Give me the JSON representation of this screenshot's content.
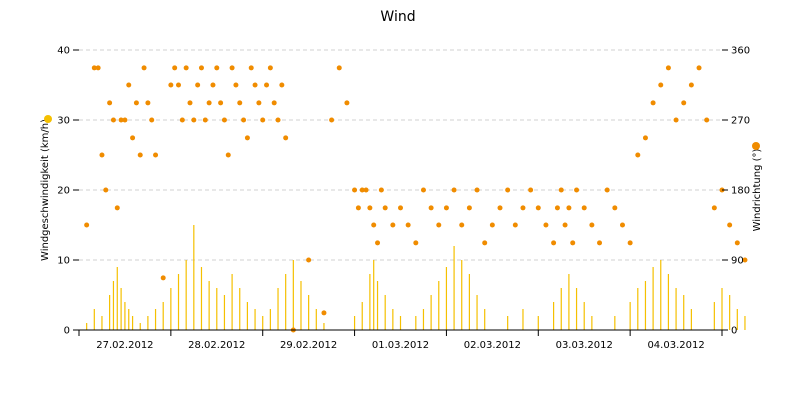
{
  "chart_data": {
    "type": "bar+scatter",
    "title": "Wind",
    "colors": {
      "speed": "#f5c000",
      "direction": "#f08c00",
      "grid": "#d0d0d0",
      "axis": "#000000"
    },
    "x_axis": {
      "type": "date",
      "range": [
        "2012-02-27T00:00",
        "2012-03-05T00:00"
      ],
      "tick_labels": [
        "27.02.2012",
        "28.02.2012",
        "29.02.2012",
        "01.03.2012",
        "02.03.2012",
        "03.03.2012",
        "04.03.2012"
      ]
    },
    "y_axis_left": {
      "label": "Windgeschwindigkeit (km/h)",
      "range": [
        0,
        40
      ],
      "ticks": [
        "0",
        "10",
        "20",
        "30",
        "40"
      ]
    },
    "y_axis_right": {
      "label": "Windrichtung (°)",
      "range": [
        0,
        360
      ],
      "ticks": [
        "0",
        "90",
        "180",
        "270",
        "360"
      ]
    },
    "grid": true,
    "series": [
      {
        "type": "bar",
        "values_note": "[hour offset from 27.02.2012 00:00, km/h]",
        "points": [
          [
            2,
            1
          ],
          [
            4,
            3
          ],
          [
            6,
            2
          ],
          [
            8,
            5
          ],
          [
            9,
            7
          ],
          [
            10,
            9
          ],
          [
            11,
            6
          ],
          [
            12,
            4
          ],
          [
            13,
            3
          ],
          [
            14,
            2
          ],
          [
            16,
            1
          ],
          [
            18,
            2
          ],
          [
            20,
            3
          ],
          [
            22,
            4
          ],
          [
            24,
            6
          ],
          [
            26,
            8
          ],
          [
            28,
            10
          ],
          [
            30,
            15
          ],
          [
            32,
            9
          ],
          [
            34,
            7
          ],
          [
            36,
            6
          ],
          [
            38,
            5
          ],
          [
            40,
            8
          ],
          [
            42,
            6
          ],
          [
            44,
            4
          ],
          [
            46,
            3
          ],
          [
            48,
            2
          ],
          [
            50,
            3
          ],
          [
            52,
            6
          ],
          [
            54,
            8
          ],
          [
            56,
            10
          ],
          [
            58,
            7
          ],
          [
            60,
            5
          ],
          [
            62,
            3
          ],
          [
            64,
            1
          ],
          [
            72,
            2
          ],
          [
            74,
            4
          ],
          [
            76,
            8
          ],
          [
            77,
            10
          ],
          [
            78,
            7
          ],
          [
            80,
            5
          ],
          [
            82,
            3
          ],
          [
            84,
            2
          ],
          [
            88,
            2
          ],
          [
            90,
            3
          ],
          [
            92,
            5
          ],
          [
            94,
            7
          ],
          [
            96,
            9
          ],
          [
            98,
            12
          ],
          [
            100,
            10
          ],
          [
            102,
            8
          ],
          [
            104,
            5
          ],
          [
            106,
            3
          ],
          [
            112,
            2
          ],
          [
            116,
            3
          ],
          [
            120,
            2
          ],
          [
            124,
            4
          ],
          [
            126,
            6
          ],
          [
            128,
            8
          ],
          [
            130,
            6
          ],
          [
            132,
            4
          ],
          [
            134,
            2
          ],
          [
            140,
            2
          ],
          [
            144,
            4
          ],
          [
            146,
            6
          ],
          [
            148,
            7
          ],
          [
            150,
            9
          ],
          [
            152,
            10
          ],
          [
            154,
            8
          ],
          [
            156,
            6
          ],
          [
            158,
            5
          ],
          [
            160,
            3
          ],
          [
            166,
            4
          ],
          [
            168,
            6
          ],
          [
            170,
            5
          ],
          [
            172,
            3
          ],
          [
            174,
            2
          ]
        ]
      },
      {
        "type": "scatter",
        "values_note": "[hour offset from 27.02.2012 00:00, degrees]",
        "points": [
          [
            2,
            135
          ],
          [
            4,
            337
          ],
          [
            5,
            337
          ],
          [
            6,
            225
          ],
          [
            7,
            180
          ],
          [
            8,
            292
          ],
          [
            9,
            270
          ],
          [
            10,
            157
          ],
          [
            11,
            270
          ],
          [
            12,
            270
          ],
          [
            13,
            315
          ],
          [
            14,
            247
          ],
          [
            15,
            292
          ],
          [
            16,
            225
          ],
          [
            17,
            337
          ],
          [
            18,
            292
          ],
          [
            19,
            270
          ],
          [
            20,
            225
          ],
          [
            22,
            67
          ],
          [
            24,
            315
          ],
          [
            25,
            337
          ],
          [
            26,
            315
          ],
          [
            27,
            270
          ],
          [
            28,
            337
          ],
          [
            29,
            292
          ],
          [
            30,
            270
          ],
          [
            31,
            315
          ],
          [
            32,
            337
          ],
          [
            33,
            270
          ],
          [
            34,
            292
          ],
          [
            35,
            315
          ],
          [
            36,
            337
          ],
          [
            37,
            292
          ],
          [
            38,
            270
          ],
          [
            39,
            225
          ],
          [
            40,
            337
          ],
          [
            41,
            315
          ],
          [
            42,
            292
          ],
          [
            43,
            270
          ],
          [
            44,
            247
          ],
          [
            45,
            337
          ],
          [
            46,
            315
          ],
          [
            47,
            292
          ],
          [
            48,
            270
          ],
          [
            49,
            315
          ],
          [
            50,
            337
          ],
          [
            51,
            292
          ],
          [
            52,
            270
          ],
          [
            53,
            315
          ],
          [
            54,
            247
          ],
          [
            56,
            0
          ],
          [
            60,
            90
          ],
          [
            64,
            22
          ],
          [
            66,
            270
          ],
          [
            68,
            337
          ],
          [
            70,
            292
          ],
          [
            72,
            180
          ],
          [
            73,
            157
          ],
          [
            74,
            180
          ],
          [
            75,
            180
          ],
          [
            76,
            157
          ],
          [
            77,
            135
          ],
          [
            78,
            112
          ],
          [
            79,
            180
          ],
          [
            80,
            157
          ],
          [
            82,
            135
          ],
          [
            84,
            157
          ],
          [
            86,
            135
          ],
          [
            88,
            112
          ],
          [
            90,
            180
          ],
          [
            92,
            157
          ],
          [
            94,
            135
          ],
          [
            96,
            157
          ],
          [
            98,
            180
          ],
          [
            100,
            135
          ],
          [
            102,
            157
          ],
          [
            104,
            180
          ],
          [
            106,
            112
          ],
          [
            108,
            135
          ],
          [
            110,
            157
          ],
          [
            112,
            180
          ],
          [
            114,
            135
          ],
          [
            116,
            157
          ],
          [
            118,
            180
          ],
          [
            120,
            157
          ],
          [
            122,
            135
          ],
          [
            124,
            112
          ],
          [
            125,
            157
          ],
          [
            126,
            180
          ],
          [
            127,
            135
          ],
          [
            128,
            157
          ],
          [
            129,
            112
          ],
          [
            130,
            180
          ],
          [
            132,
            157
          ],
          [
            134,
            135
          ],
          [
            136,
            112
          ],
          [
            138,
            180
          ],
          [
            140,
            157
          ],
          [
            142,
            135
          ],
          [
            144,
            112
          ],
          [
            146,
            225
          ],
          [
            148,
            247
          ],
          [
            150,
            292
          ],
          [
            152,
            315
          ],
          [
            154,
            337
          ],
          [
            156,
            270
          ],
          [
            158,
            292
          ],
          [
            160,
            315
          ],
          [
            162,
            337
          ],
          [
            164,
            270
          ],
          [
            166,
            157
          ],
          [
            168,
            180
          ],
          [
            170,
            135
          ],
          [
            172,
            112
          ],
          [
            174,
            90
          ]
        ]
      }
    ]
  }
}
